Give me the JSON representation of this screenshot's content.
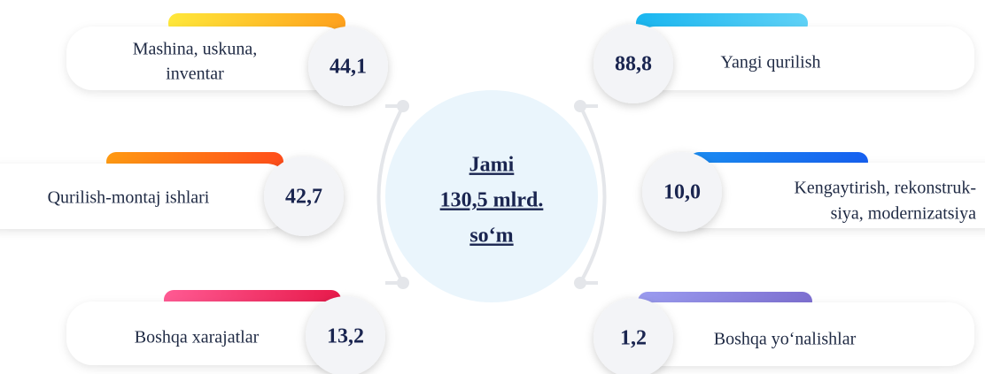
{
  "center": {
    "lines": [
      "Jami",
      "130,5 mlrd.",
      "so‘m"
    ]
  },
  "nodes": [
    {
      "label": [
        "Mashina, uskuna,",
        "inventar"
      ],
      "value": "44,1"
    },
    {
      "label": [
        "Qurilish-montaj ishlari"
      ],
      "value": "42,7"
    },
    {
      "label": [
        "Boshqa xarajatlar"
      ],
      "value": "13,2"
    },
    {
      "label": [
        "Yangi qurilish"
      ],
      "value": "88,8"
    },
    {
      "label": [
        "Kengaytirish, rekonstruk-",
        "siya, modernizatsiya"
      ],
      "value": "10,0"
    },
    {
      "label": [
        "Boshqa yo‘nalishlar"
      ],
      "value": "1,2"
    }
  ]
}
